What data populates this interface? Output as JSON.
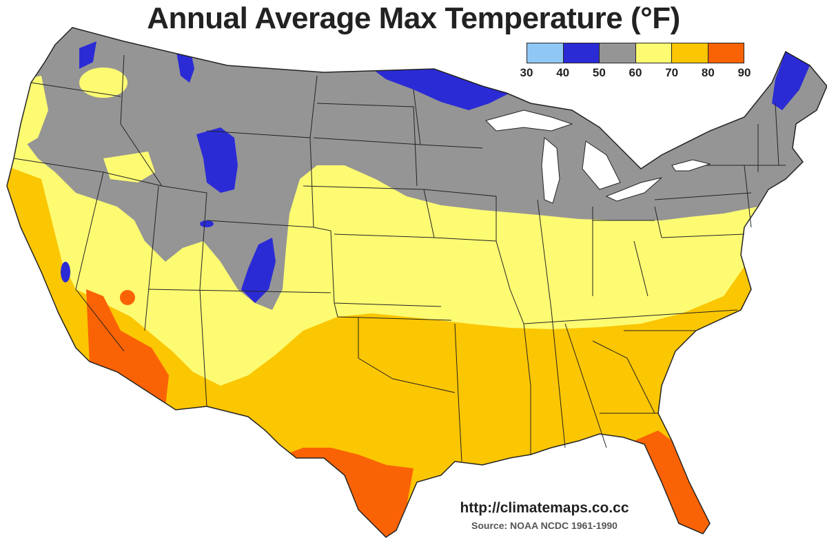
{
  "title": "Annual Average Max Temperature (°F)",
  "legend": {
    "ticks": [
      "30",
      "40",
      "50",
      "60",
      "70",
      "80",
      "90"
    ],
    "bins": [
      {
        "range": "30-40",
        "color": "#8fc8f5"
      },
      {
        "range": "40-50",
        "color": "#2b2bd6"
      },
      {
        "range": "50-60",
        "color": "#959595"
      },
      {
        "range": "60-70",
        "color": "#fdfb72"
      },
      {
        "range": "70-80",
        "color": "#fbc602"
      },
      {
        "range": "80-90",
        "color": "#fa6305"
      }
    ]
  },
  "url": "http://climatemaps.co.cc",
  "source": "Source: NOAA NCDC 1961-1990"
}
